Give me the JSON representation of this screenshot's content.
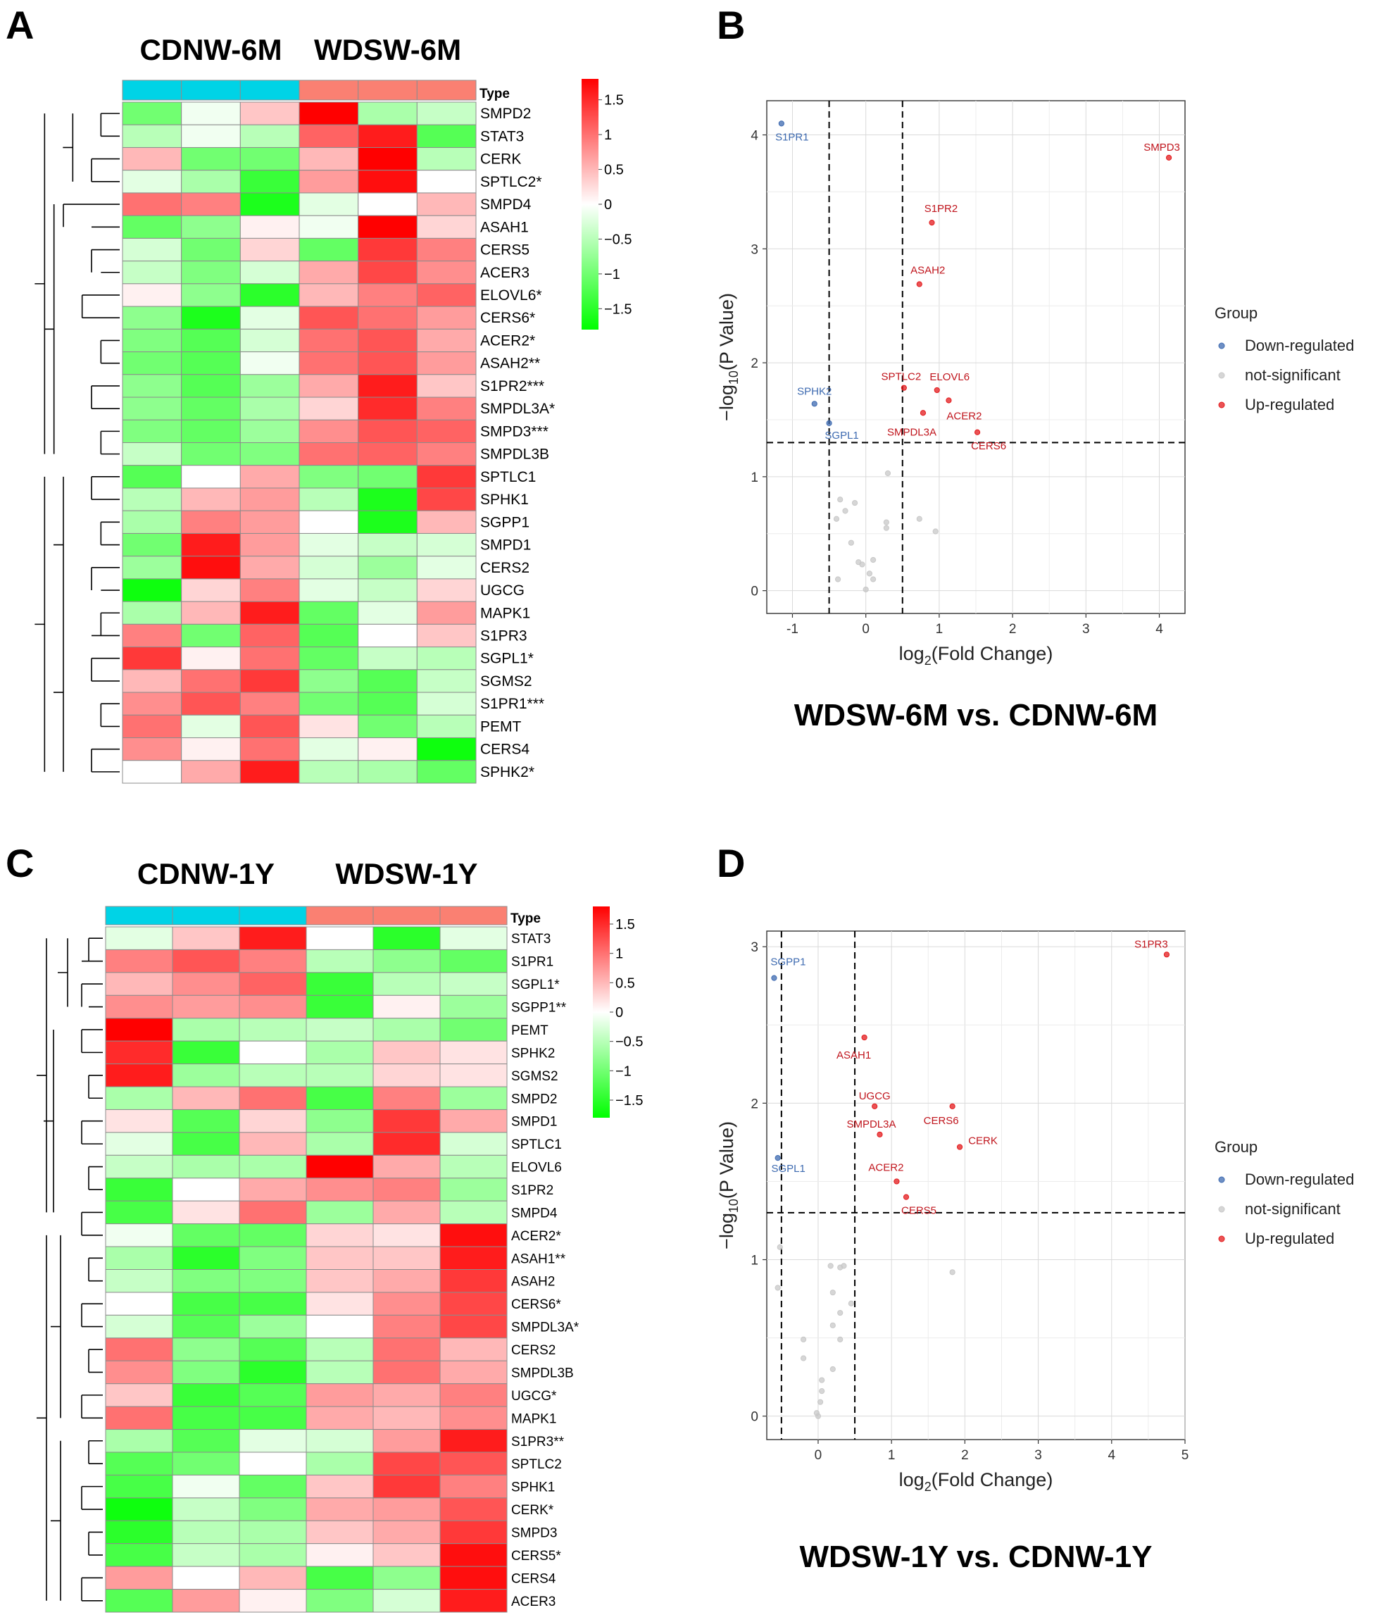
{
  "colors": {
    "type_control": "#00d3e6",
    "type_treated": "#fa8072",
    "low": "#00ff00",
    "mid": "#ffffff",
    "high": "#ff0000",
    "up": "#e31a1c",
    "down": "#3d6ab0",
    "ns": "#c8c8c8"
  },
  "chart_data": [
    {
      "panel": "A",
      "type": "heatmap",
      "group_labels": [
        "CDNW-6M",
        "WDSW-6M"
      ],
      "type_label": "Type",
      "columns": [
        "CDNW-6M",
        "CDNW-6M",
        "CDNW-6M",
        "WDSW-6M",
        "WDSW-6M",
        "WDSW-6M"
      ],
      "rows": [
        "SMPD2",
        "STAT3",
        "CERK",
        "SPTLC2*",
        "SMPD4",
        "ASAH1",
        "CERS5",
        "ACER3",
        "ELOVL6*",
        "CERS6*",
        "ACER2*",
        "ASAH2**",
        "S1PR2***",
        "SMPDL3A*",
        "SMPD3***",
        "SMPDL3B",
        "SPTLC1",
        "SPHK1",
        "SGPP1",
        "SMPD1",
        "CERS2",
        "UGCG",
        "MAPK1",
        "S1PR3",
        "SGPL1*",
        "SGMS2",
        "S1PR1***",
        "PEMT",
        "CERS4",
        "SPHK2*"
      ],
      "values": [
        [
          -1.0,
          -0.1,
          0.4,
          1.9,
          -0.6,
          -0.4
        ],
        [
          -0.5,
          -0.1,
          -0.5,
          1.1,
          1.6,
          -1.2
        ],
        [
          0.5,
          -1.0,
          -1.0,
          0.5,
          1.8,
          -0.5
        ],
        [
          -0.2,
          -0.6,
          -1.4,
          0.7,
          1.7,
          0.0
        ],
        [
          1.0,
          0.9,
          -1.6,
          -0.2,
          0.0,
          0.5
        ],
        [
          -1.1,
          -0.8,
          0.1,
          -0.1,
          1.9,
          0.3
        ],
        [
          -0.3,
          -1.0,
          0.3,
          -1.1,
          1.4,
          0.9
        ],
        [
          -0.4,
          -0.9,
          -0.3,
          0.6,
          1.3,
          0.8
        ],
        [
          0.1,
          -0.8,
          -1.5,
          0.5,
          0.9,
          1.1
        ],
        [
          -0.8,
          -1.6,
          -0.2,
          1.2,
          1.0,
          0.7
        ],
        [
          -0.9,
          -1.2,
          -0.3,
          1.0,
          1.2,
          0.6
        ],
        [
          -1.0,
          -1.2,
          -0.1,
          1.0,
          1.2,
          0.7
        ],
        [
          -0.8,
          -1.2,
          -0.7,
          0.6,
          1.6,
          0.4
        ],
        [
          -0.8,
          -1.1,
          -0.6,
          0.3,
          1.5,
          0.9
        ],
        [
          -0.9,
          -1.1,
          -0.7,
          0.8,
          1.2,
          1.1
        ],
        [
          -0.4,
          -1.0,
          -0.9,
          1.0,
          1.1,
          0.9
        ],
        [
          -1.2,
          0.0,
          0.6,
          -0.9,
          -1.0,
          1.4
        ],
        [
          -0.5,
          0.5,
          0.7,
          -0.5,
          -1.6,
          1.3
        ],
        [
          -0.6,
          0.9,
          0.7,
          0.0,
          -1.6,
          0.5
        ],
        [
          -1.0,
          1.6,
          0.7,
          -0.2,
          -0.4,
          -0.3
        ],
        [
          -0.7,
          1.7,
          0.6,
          -0.3,
          -0.7,
          -0.2
        ],
        [
          -1.7,
          0.3,
          0.9,
          -0.2,
          -0.4,
          0.3
        ],
        [
          -0.6,
          0.5,
          1.6,
          -1.1,
          -0.2,
          0.7
        ],
        [
          0.9,
          -1.0,
          1.1,
          -1.2,
          0.0,
          0.4
        ],
        [
          1.4,
          0.1,
          1.0,
          -1.1,
          -0.4,
          -0.5
        ],
        [
          0.5,
          1.0,
          1.4,
          -0.8,
          -1.2,
          -0.4
        ],
        [
          0.8,
          1.2,
          0.9,
          -1.0,
          -1.2,
          -0.3
        ],
        [
          1.0,
          -0.2,
          1.2,
          0.2,
          -1.0,
          -0.5
        ],
        [
          0.8,
          0.1,
          1.0,
          -0.2,
          0.1,
          -1.7
        ],
        [
          0.0,
          0.6,
          1.6,
          -0.5,
          -0.6,
          -1.1
        ]
      ],
      "legend_ticks": [
        1.5,
        1,
        0.5,
        0,
        -0.5,
        -1,
        -1.5
      ],
      "legend_tick_labels": [
        "1.5",
        "1",
        "0.5",
        "0",
        "−0.5",
        "−1",
        "−1.5"
      ],
      "legend_range": [
        -1.8,
        1.8
      ]
    },
    {
      "panel": "B",
      "type": "scatter",
      "title": "WDSW-6M vs. CDNW-6M",
      "xlabel_main": "log",
      "xlabel_sub": "2",
      "xlabel_rest": "(Fold Change)",
      "ylabel_pre": "−log",
      "ylabel_sub": "10",
      "ylabel_rest": "(P Value)",
      "xlim": [
        -1.35,
        4.35
      ],
      "ylim": [
        -0.2,
        4.3
      ],
      "xticks": [
        -1,
        0,
        1,
        2,
        3,
        4
      ],
      "xtick_labels": [
        "-1",
        "0",
        "1",
        "2",
        "3",
        "4"
      ],
      "yticks": [
        0,
        1,
        2,
        3,
        4
      ],
      "ytick_labels": [
        "0",
        "1",
        "2",
        "3",
        "4"
      ],
      "fc_cutoffs": [
        -0.5,
        0.5
      ],
      "p_cutoff": 1.3,
      "legend_title": "Group",
      "legend_items": [
        "Down-regulated",
        "not-significant",
        "Up-regulated"
      ],
      "points": [
        {
          "x": -1.15,
          "y": 4.1,
          "g": "down",
          "label": "S1PR1"
        },
        {
          "x": -0.7,
          "y": 1.64,
          "g": "down",
          "label": "SPHK2"
        },
        {
          "x": -0.5,
          "y": 1.47,
          "g": "down",
          "label": "SGPL1"
        },
        {
          "x": 4.13,
          "y": 3.8,
          "g": "up",
          "label": "SMPD3"
        },
        {
          "x": 0.9,
          "y": 3.23,
          "g": "up",
          "label": "S1PR2"
        },
        {
          "x": 0.73,
          "y": 2.69,
          "g": "up",
          "label": "ASAH2"
        },
        {
          "x": 0.52,
          "y": 1.78,
          "g": "up",
          "label": "SPTLC2"
        },
        {
          "x": 0.97,
          "y": 1.76,
          "g": "up",
          "label": "ELOVL6"
        },
        {
          "x": 1.13,
          "y": 1.67,
          "g": "up",
          "label": "ACER2"
        },
        {
          "x": 0.78,
          "y": 1.56,
          "g": "up",
          "label": "SMPDL3A"
        },
        {
          "x": 1.52,
          "y": 1.39,
          "g": "up",
          "label": "CERS6"
        },
        {
          "x": 0.3,
          "y": 1.03,
          "g": "ns"
        },
        {
          "x": -0.35,
          "y": 0.8,
          "g": "ns"
        },
        {
          "x": -0.15,
          "y": 0.77,
          "g": "ns"
        },
        {
          "x": -0.28,
          "y": 0.7,
          "g": "ns"
        },
        {
          "x": -0.4,
          "y": 0.63,
          "g": "ns"
        },
        {
          "x": 0.73,
          "y": 0.63,
          "g": "ns"
        },
        {
          "x": 0.28,
          "y": 0.6,
          "g": "ns"
        },
        {
          "x": 0.28,
          "y": 0.55,
          "g": "ns"
        },
        {
          "x": 0.95,
          "y": 0.52,
          "g": "ns"
        },
        {
          "x": -0.2,
          "y": 0.42,
          "g": "ns"
        },
        {
          "x": 0.1,
          "y": 0.27,
          "g": "ns"
        },
        {
          "x": -0.1,
          "y": 0.25,
          "g": "ns"
        },
        {
          "x": -0.05,
          "y": 0.23,
          "g": "ns"
        },
        {
          "x": 0.05,
          "y": 0.15,
          "g": "ns"
        },
        {
          "x": 0.1,
          "y": 0.1,
          "g": "ns"
        },
        {
          "x": -0.38,
          "y": 0.1,
          "g": "ns"
        },
        {
          "x": 0.0,
          "y": 0.01,
          "g": "ns"
        }
      ]
    },
    {
      "panel": "C",
      "type": "heatmap",
      "group_labels": [
        "CDNW-1Y",
        "WDSW-1Y"
      ],
      "type_label": "Type",
      "columns": [
        "CDNW-1Y",
        "CDNW-1Y",
        "CDNW-1Y",
        "WDSW-1Y",
        "WDSW-1Y",
        "WDSW-1Y"
      ],
      "rows": [
        "STAT3",
        "S1PR1",
        "SGPL1*",
        "SGPP1**",
        "PEMT",
        "SPHK2",
        "SGMS2",
        "SMPD2",
        "SMPD1",
        "SPTLC1",
        "ELOVL6",
        "S1PR2",
        "SMPD4",
        "ACER2*",
        "ASAH1**",
        "ASAH2",
        "CERS6*",
        "SMPDL3A*",
        "CERS2",
        "SMPDL3B",
        "UGCG*",
        "MAPK1",
        "S1PR3**",
        "SPTLC2",
        "SPHK1",
        "CERK*",
        "SMPD3",
        "CERS5*",
        "CERS4",
        "ACER3"
      ],
      "values": [
        [
          -0.2,
          0.4,
          1.6,
          0.0,
          -1.5,
          -0.2
        ],
        [
          0.9,
          1.2,
          0.9,
          -0.5,
          -0.8,
          -1.1
        ],
        [
          0.5,
          0.8,
          1.1,
          -1.4,
          -0.5,
          -0.4
        ],
        [
          0.8,
          0.7,
          0.8,
          -1.4,
          0.1,
          -0.7
        ],
        [
          1.8,
          -0.6,
          -0.5,
          -0.4,
          -0.6,
          -1.0
        ],
        [
          1.5,
          -1.4,
          0.0,
          -0.6,
          0.4,
          0.2
        ],
        [
          1.6,
          -0.7,
          -0.5,
          -0.5,
          0.3,
          0.2
        ],
        [
          -0.6,
          0.5,
          1.0,
          -1.3,
          0.9,
          -0.7
        ],
        [
          0.2,
          -1.2,
          0.3,
          -0.8,
          1.4,
          0.6
        ],
        [
          -0.2,
          -1.3,
          0.5,
          -0.6,
          1.5,
          -0.3
        ],
        [
          -0.4,
          -0.6,
          -0.6,
          1.8,
          0.6,
          -0.5
        ],
        [
          -1.4,
          0.0,
          0.6,
          0.8,
          0.9,
          -0.7
        ],
        [
          -1.3,
          0.2,
          1.0,
          -0.7,
          0.6,
          -0.5
        ],
        [
          -0.1,
          -1.1,
          -1.1,
          0.3,
          0.2,
          1.7
        ],
        [
          -0.6,
          -1.5,
          -0.9,
          0.4,
          0.4,
          1.6
        ],
        [
          -0.4,
          -0.9,
          -0.9,
          0.4,
          0.6,
          1.4
        ],
        [
          0.0,
          -1.3,
          -1.3,
          0.2,
          0.8,
          1.3
        ],
        [
          -0.3,
          -1.2,
          -0.7,
          0.0,
          0.9,
          1.3
        ],
        [
          1.0,
          -0.8,
          -1.2,
          -0.5,
          1.0,
          0.5
        ],
        [
          0.8,
          -0.9,
          -1.5,
          -0.5,
          1.0,
          0.6
        ],
        [
          0.4,
          -1.4,
          -1.2,
          0.7,
          0.6,
          0.9
        ],
        [
          1.0,
          -1.3,
          -1.3,
          0.6,
          0.5,
          0.8
        ],
        [
          -0.6,
          -1.2,
          -0.2,
          -0.3,
          0.7,
          1.6
        ],
        [
          -1.2,
          -1.0,
          0.0,
          -0.6,
          1.3,
          1.2
        ],
        [
          -1.3,
          -0.1,
          -1.1,
          0.4,
          1.4,
          0.9
        ],
        [
          -1.7,
          -0.4,
          -0.9,
          0.6,
          0.7,
          1.2
        ],
        [
          -1.5,
          -0.5,
          -0.6,
          0.4,
          0.6,
          1.4
        ],
        [
          -1.3,
          -0.4,
          -0.6,
          0.1,
          0.4,
          1.7
        ],
        [
          0.7,
          0.0,
          0.5,
          -1.3,
          -0.8,
          1.7
        ],
        [
          -1.2,
          0.7,
          0.1,
          -0.9,
          -0.3,
          1.6
        ]
      ],
      "legend_ticks": [
        1.5,
        1,
        0.5,
        0,
        -0.5,
        -1,
        -1.5
      ],
      "legend_tick_labels": [
        "1.5",
        "1",
        "0.5",
        "0",
        "−0.5",
        "−1",
        "−1.5"
      ],
      "legend_range": [
        -1.8,
        1.8
      ]
    },
    {
      "panel": "D",
      "type": "scatter",
      "title": "WDSW-1Y vs. CDNW-1Y",
      "xlabel_main": "log",
      "xlabel_sub": "2",
      "xlabel_rest": "(Fold Change)",
      "ylabel_pre": "−log",
      "ylabel_sub": "10",
      "ylabel_rest": "(P Value)",
      "xlim": [
        -0.7,
        5.0
      ],
      "ylim": [
        -0.15,
        3.1
      ],
      "xticks": [
        0,
        1,
        2,
        3,
        4,
        5
      ],
      "xtick_labels": [
        "0",
        "1",
        "2",
        "3",
        "4",
        "5"
      ],
      "yticks": [
        0,
        1,
        2,
        3
      ],
      "ytick_labels": [
        "0",
        "1",
        "2",
        "3"
      ],
      "fc_cutoffs": [
        -0.5,
        0.5
      ],
      "p_cutoff": 1.3,
      "legend_title": "Group",
      "legend_items": [
        "Down-regulated",
        "not-significant",
        "Up-regulated"
      ],
      "points": [
        {
          "x": -0.6,
          "y": 2.8,
          "g": "down",
          "label": "SGPP1"
        },
        {
          "x": -0.55,
          "y": 1.65,
          "g": "down",
          "label": "SGPL1"
        },
        {
          "x": 4.75,
          "y": 2.95,
          "g": "up",
          "label": "S1PR3"
        },
        {
          "x": 0.63,
          "y": 2.42,
          "g": "up",
          "label": "ASAH1"
        },
        {
          "x": 0.77,
          "y": 1.98,
          "g": "up",
          "label": "UGCG"
        },
        {
          "x": 1.83,
          "y": 1.98,
          "g": "up",
          "label": "CERS6"
        },
        {
          "x": 0.84,
          "y": 1.8,
          "g": "up",
          "label": "SMPDL3A"
        },
        {
          "x": 1.93,
          "y": 1.72,
          "g": "up",
          "label": "CERK"
        },
        {
          "x": 1.07,
          "y": 1.5,
          "g": "up",
          "label": "ACER2"
        },
        {
          "x": 1.2,
          "y": 1.4,
          "g": "up",
          "label": "CERS5"
        },
        {
          "x": -0.52,
          "y": 1.08,
          "g": "ns"
        },
        {
          "x": -0.55,
          "y": 0.82,
          "g": "ns"
        },
        {
          "x": 0.17,
          "y": 0.96,
          "g": "ns"
        },
        {
          "x": 0.35,
          "y": 0.96,
          "g": "ns"
        },
        {
          "x": 0.3,
          "y": 0.95,
          "g": "ns"
        },
        {
          "x": 1.83,
          "y": 0.92,
          "g": "ns"
        },
        {
          "x": 0.2,
          "y": 0.79,
          "g": "ns"
        },
        {
          "x": 0.45,
          "y": 0.72,
          "g": "ns"
        },
        {
          "x": 0.3,
          "y": 0.66,
          "g": "ns"
        },
        {
          "x": 0.2,
          "y": 0.58,
          "g": "ns"
        },
        {
          "x": -0.2,
          "y": 0.49,
          "g": "ns"
        },
        {
          "x": 0.3,
          "y": 0.49,
          "g": "ns"
        },
        {
          "x": -0.2,
          "y": 0.37,
          "g": "ns"
        },
        {
          "x": 0.2,
          "y": 0.3,
          "g": "ns"
        },
        {
          "x": 0.05,
          "y": 0.23,
          "g": "ns"
        },
        {
          "x": 0.05,
          "y": 0.16,
          "g": "ns"
        },
        {
          "x": 0.03,
          "y": 0.09,
          "g": "ns"
        },
        {
          "x": -0.02,
          "y": 0.02,
          "g": "ns"
        },
        {
          "x": 0.0,
          "y": 0.0,
          "g": "ns"
        }
      ]
    }
  ]
}
